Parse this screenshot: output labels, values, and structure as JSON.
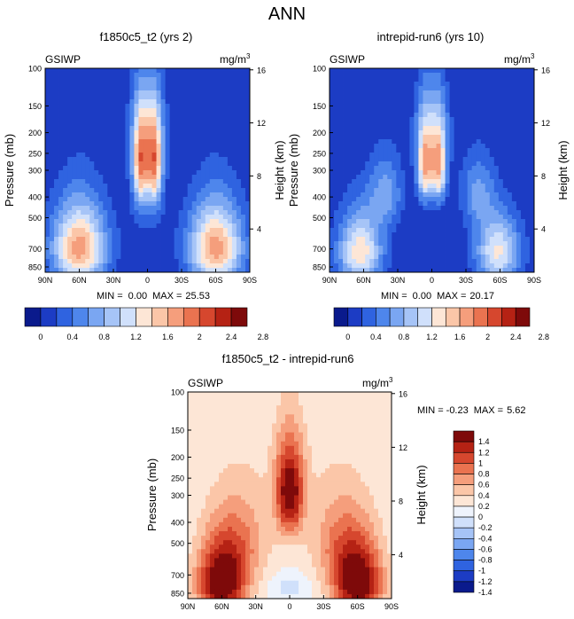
{
  "page_title": "ANN",
  "colors": {
    "abs_scale": [
      "#0a1a8c",
      "#1c3cc4",
      "#2f63e0",
      "#4e86ec",
      "#7aa6f2",
      "#a6c4f7",
      "#d0e0fb",
      "#fde6d6",
      "#fbc6a8",
      "#f59e7c",
      "#ea7350",
      "#d6472e",
      "#b52214",
      "#7e0a0a"
    ],
    "diff_scale": [
      "#0a1a8c",
      "#1c3cc4",
      "#2f63e0",
      "#4e86ec",
      "#7aa6f2",
      "#a6c4f7",
      "#d0e0fb",
      "#eef3fc",
      "#fde6d6",
      "#fbc6a8",
      "#f59e7c",
      "#ea7350",
      "#d6472e",
      "#b52214",
      "#7e0a0a"
    ]
  },
  "chart_data": [
    {
      "id": "panel1",
      "type": "heatmap",
      "title": "f1850c5_t2 (yrs 2)",
      "left_label": "GSIWP",
      "units": "mg/m",
      "units_exp": "3",
      "ylabel": "Pressure (mb)",
      "y2label": "Height (km)",
      "xticks": [
        "90N",
        "60N",
        "30N",
        "0",
        "30S",
        "60S",
        "90S"
      ],
      "xtick_lat": [
        90,
        60,
        30,
        0,
        -30,
        -60,
        -90
      ],
      "yticks": [
        100,
        150,
        200,
        250,
        300,
        400,
        500,
        700,
        850
      ],
      "y2ticks": [
        16,
        12,
        8,
        4
      ],
      "stats": {
        "min_label": "MIN =",
        "min": "0.00",
        "max_label": "MAX =",
        "max": "25.53"
      },
      "colorbar_levels": [
        "0",
        "0.4",
        "0.8",
        "1.2",
        "1.6",
        "2",
        "2.4",
        "2.8"
      ],
      "features": [
        {
          "lat": 60,
          "p": 690,
          "sp": 300,
          "sl": 24,
          "amp": 3.4
        },
        {
          "lat": -60,
          "p": 690,
          "sp": 300,
          "sl": 24,
          "amp": 3.4
        },
        {
          "lat": 6,
          "p": 280,
          "sp": 130,
          "sl": 7,
          "amp": 3.1
        },
        {
          "lat": -6,
          "p": 280,
          "sp": 130,
          "sl": 7,
          "amp": 3.1
        },
        {
          "lat": 0,
          "p": 185,
          "sp": 95,
          "sl": 16,
          "amp": 1.2
        },
        {
          "lat": 0,
          "p": 430,
          "sp": 220,
          "sl": 18,
          "amp": 0.5
        }
      ]
    },
    {
      "id": "panel2",
      "type": "heatmap",
      "title": "intrepid-run6 (yrs 10)",
      "left_label": "GSIWP",
      "units": "mg/m",
      "units_exp": "3",
      "ylabel": "Pressure (mb)",
      "y2label": "Height (km)",
      "xticks": [
        "90N",
        "60N",
        "30N",
        "0",
        "30S",
        "60S",
        "90S"
      ],
      "xtick_lat": [
        90,
        60,
        30,
        0,
        -30,
        -60,
        -90
      ],
      "yticks": [
        100,
        150,
        200,
        250,
        300,
        400,
        500,
        700,
        850
      ],
      "y2ticks": [
        16,
        12,
        8,
        4
      ],
      "stats": {
        "min_label": "MIN =",
        "min": "0.00",
        "max_label": "MAX =",
        "max": "20.17"
      },
      "colorbar_levels": [
        "0",
        "0.4",
        "0.8",
        "1.2",
        "1.6",
        "2",
        "2.4",
        "2.8"
      ],
      "features": [
        {
          "lat": 63,
          "p": 720,
          "sp": 280,
          "sl": 20,
          "amp": 2.7
        },
        {
          "lat": -58,
          "p": 720,
          "sp": 260,
          "sl": 20,
          "amp": 2.5
        },
        {
          "lat": 6,
          "p": 290,
          "sp": 120,
          "sl": 7,
          "amp": 3.0
        },
        {
          "lat": -6,
          "p": 290,
          "sp": 120,
          "sl": 7,
          "amp": 3.0
        },
        {
          "lat": 0,
          "p": 185,
          "sp": 95,
          "sl": 16,
          "amp": 1.1
        },
        {
          "lat": 40,
          "p": 380,
          "sp": 150,
          "sl": 15,
          "amp": 1.3
        },
        {
          "lat": -40,
          "p": 380,
          "sp": 150,
          "sl": 15,
          "amp": 1.2
        }
      ]
    },
    {
      "id": "panel3",
      "type": "heatmap",
      "title": "f1850c5_t2 - intrepid-run6",
      "left_label": "GSIWP",
      "units": "mg/m",
      "units_exp": "3",
      "ylabel": "Pressure (mb)",
      "y2label": "Height (km)",
      "xticks": [
        "90N",
        "60N",
        "30N",
        "0",
        "30S",
        "60S",
        "90S"
      ],
      "xtick_lat": [
        90,
        60,
        30,
        0,
        -30,
        -60,
        -90
      ],
      "yticks": [
        100,
        150,
        200,
        250,
        300,
        400,
        500,
        700,
        850
      ],
      "y2ticks": [
        16,
        12,
        8,
        4
      ],
      "stats": {
        "min_label": "MIN =",
        "min": "-0.23",
        "max_label": "MAX =",
        "max": "5.62"
      },
      "colorbar_levels": [
        "1.4",
        "1.2",
        "1",
        "0.8",
        "0.6",
        "0.4",
        "0.2",
        "0",
        "-0.2",
        "-0.4",
        "-0.6",
        "-0.8",
        "-1",
        "-1.2",
        "-1.4"
      ],
      "features": [
        {
          "lat": 60,
          "p": 760,
          "sp": 320,
          "sl": 22,
          "amp": 1.5
        },
        {
          "lat": -60,
          "p": 760,
          "sp": 320,
          "sl": 22,
          "amp": 1.5
        },
        {
          "lat": 5,
          "p": 300,
          "sp": 140,
          "sl": 9,
          "amp": 0.9
        },
        {
          "lat": -5,
          "p": 300,
          "sp": 140,
          "sl": 9,
          "amp": 0.9
        },
        {
          "lat": 0,
          "p": 200,
          "sp": 90,
          "sl": 22,
          "amp": 0.18
        },
        {
          "lat": 40,
          "p": 470,
          "sp": 250,
          "sl": 25,
          "amp": 0.45
        },
        {
          "lat": -40,
          "p": 470,
          "sp": 250,
          "sl": 25,
          "amp": 0.45
        },
        {
          "lat": 0,
          "p": 800,
          "sp": 120,
          "sl": 20,
          "amp": -0.28
        }
      ]
    }
  ]
}
